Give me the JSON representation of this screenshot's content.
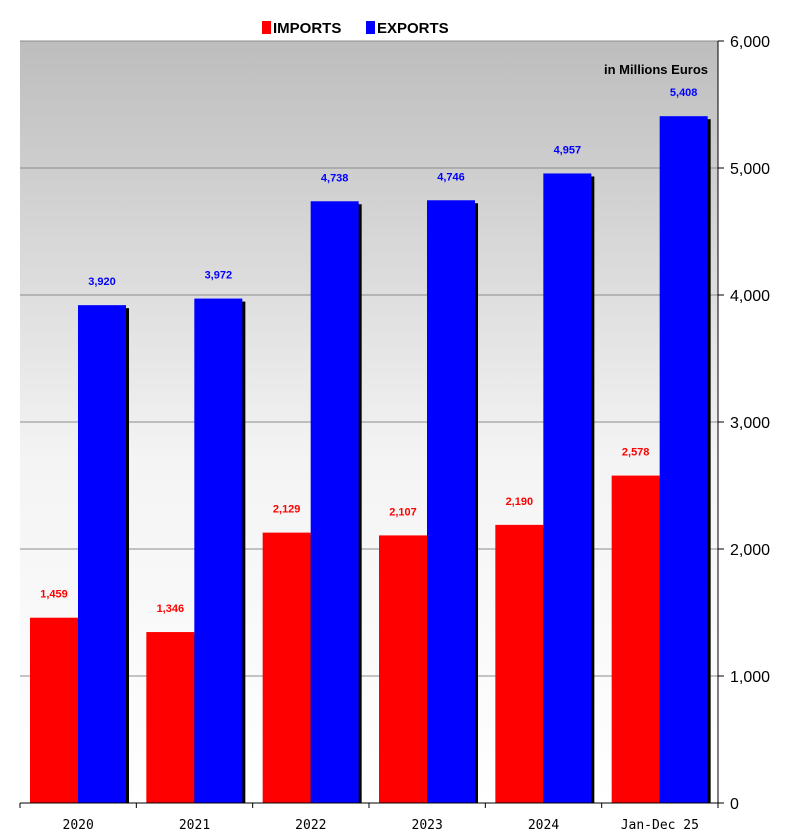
{
  "chart_data": {
    "type": "bar",
    "categories": [
      "2020",
      "2021",
      "2022",
      "2023",
      "2024",
      "Jan-Dec 25"
    ],
    "series": [
      {
        "name": "IMPORTS",
        "color": "#ff0000",
        "values": [
          1459,
          1346,
          2129,
          2107,
          2190,
          2578
        ],
        "labels": [
          "1,459",
          "1,346",
          "2,129",
          "2,107",
          "2,190",
          "2,578"
        ]
      },
      {
        "name": "EXPORTS",
        "color": "#0000ff",
        "values": [
          3920,
          3972,
          4738,
          4746,
          4957,
          5408
        ],
        "labels": [
          "3,920",
          "3,972",
          "4,738",
          "4,746",
          "4,957",
          "5,408"
        ]
      }
    ],
    "unit_note": "in Millions Euros",
    "ylim": [
      0,
      6000
    ],
    "yticks": [
      0,
      1000,
      2000,
      3000,
      4000,
      5000,
      6000
    ],
    "ytick_labels": [
      "0",
      "1,000",
      "2,000",
      "3,000",
      "4,000",
      "5,000",
      "6,000"
    ],
    "y_axis_side": "right",
    "grid": true,
    "legend_position": "top-center"
  }
}
